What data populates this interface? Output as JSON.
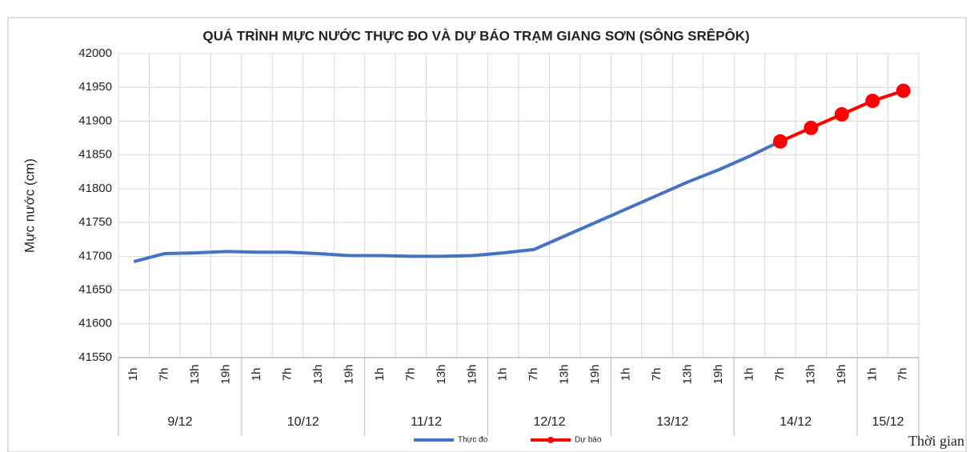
{
  "chart_data": {
    "type": "line",
    "title": "QUÁ TRÌNH MỰC NƯỚC THỰC ĐO VÀ DỰ BÁO TRẠM GIANG SƠN (SÔNG SRÊPÔK)",
    "y_label": "Mực nước (cm)",
    "x_label": "Thời gian",
    "categories": [
      "1h",
      "7h",
      "13h",
      "19h",
      "1h",
      "7h",
      "13h",
      "19h",
      "1h",
      "7h",
      "13h",
      "19h",
      "1h",
      "7h",
      "13h",
      "19h",
      "1h",
      "7h",
      "13h",
      "19h",
      "1h",
      "7h",
      "13h",
      "19h",
      "1h",
      "7h"
    ],
    "groups": [
      "9/12",
      "10/12",
      "11/12",
      "12/12",
      "13/12",
      "14/12",
      "15/12"
    ],
    "series": [
      {
        "name": "Thực đo",
        "color": "#4472c4",
        "marker": false,
        "values": [
          41692,
          41704,
          41705,
          41707,
          41706,
          41706,
          41704,
          41701,
          41701,
          41700,
          41700,
          41701,
          41705,
          41710,
          41730,
          41750,
          41770,
          41790,
          41810,
          41828,
          41848,
          41870,
          null,
          null,
          null,
          null
        ]
      },
      {
        "name": "Dự báo",
        "color": "#ff0000",
        "marker": true,
        "values": [
          null,
          null,
          null,
          null,
          null,
          null,
          null,
          null,
          null,
          null,
          null,
          null,
          null,
          null,
          null,
          null,
          null,
          null,
          null,
          null,
          null,
          41870,
          41890,
          41910,
          41930,
          41945
        ]
      }
    ],
    "ylim": [
      41550,
      42000
    ],
    "yticks": [
      41550,
      41600,
      41650,
      41700,
      41750,
      41800,
      41850,
      41900,
      41950,
      42000
    ],
    "grid": true
  }
}
